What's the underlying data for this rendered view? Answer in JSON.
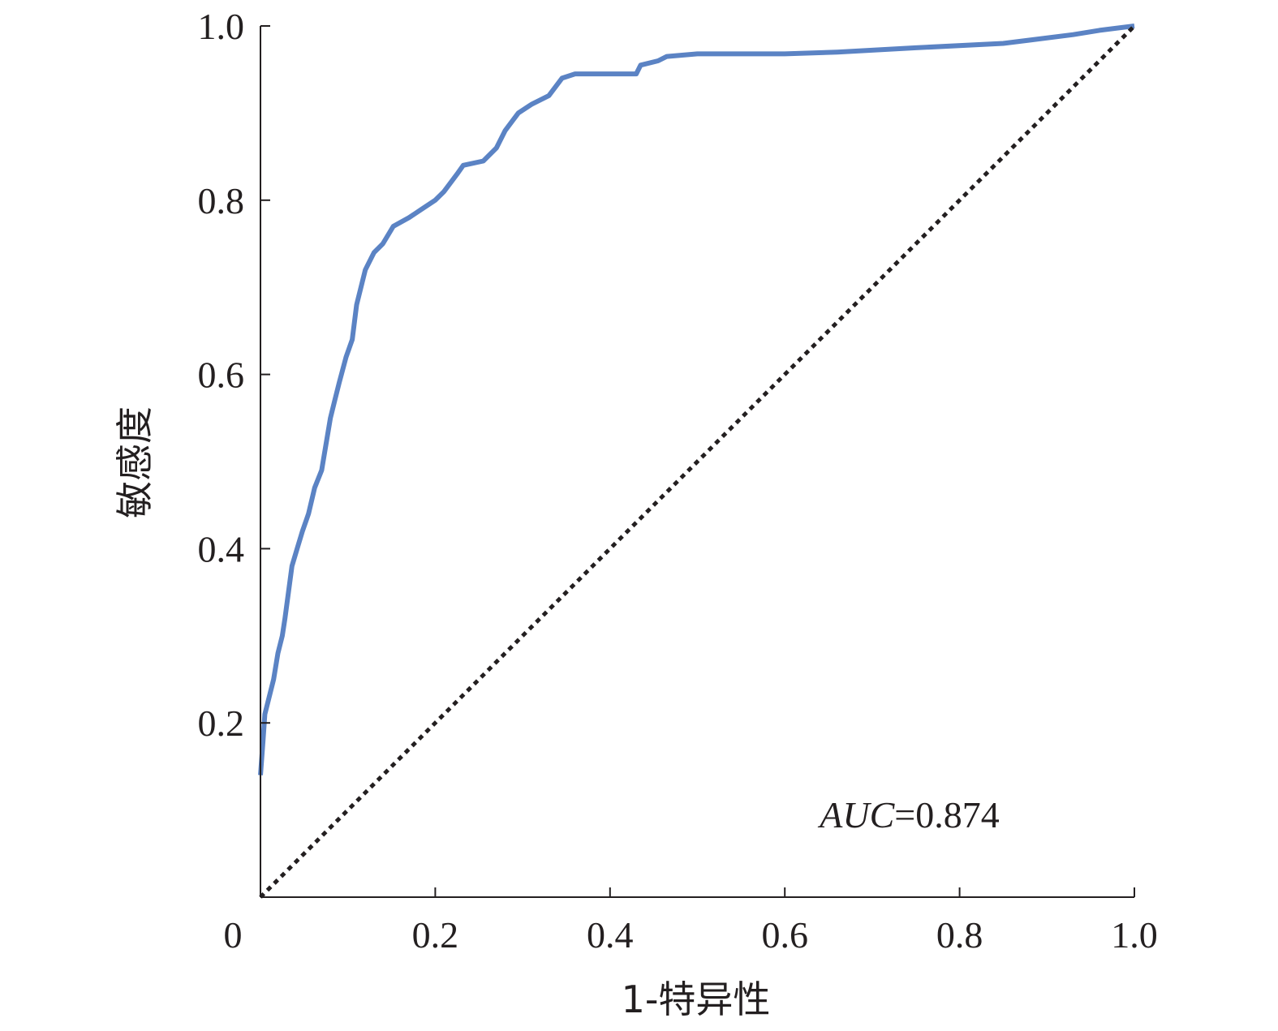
{
  "chart_data": {
    "type": "line",
    "xlabel": "1-特异性",
    "ylabel": "敏感度",
    "xlim": [
      0,
      1.0
    ],
    "ylim": [
      0,
      1.0
    ],
    "x_ticks": [
      {
        "value": 0,
        "label": "0"
      },
      {
        "value": 0.2,
        "label": "0.2"
      },
      {
        "value": 0.4,
        "label": "0.4"
      },
      {
        "value": 0.6,
        "label": "0.6"
      },
      {
        "value": 0.8,
        "label": "0.8"
      },
      {
        "value": 1.0,
        "label": "1.0"
      }
    ],
    "y_ticks": [
      {
        "value": 0.2,
        "label": "0.2"
      },
      {
        "value": 0.4,
        "label": "0.4"
      },
      {
        "value": 0.6,
        "label": "0.6"
      },
      {
        "value": 0.8,
        "label": "0.8"
      },
      {
        "value": 1.0,
        "label": "1.0"
      }
    ],
    "annotation": {
      "italic": "AUC",
      "rest": "=0.874",
      "x": 0.64,
      "y": 0.095
    },
    "grid": false,
    "series": [
      {
        "color": "#5b83c4",
        "style": "solid",
        "points": [
          [
            0.0,
            0.14
          ],
          [
            0.003,
            0.18
          ],
          [
            0.005,
            0.21
          ],
          [
            0.01,
            0.23
          ],
          [
            0.015,
            0.25
          ],
          [
            0.02,
            0.28
          ],
          [
            0.025,
            0.3
          ],
          [
            0.028,
            0.32
          ],
          [
            0.032,
            0.35
          ],
          [
            0.036,
            0.38
          ],
          [
            0.042,
            0.4
          ],
          [
            0.048,
            0.42
          ],
          [
            0.055,
            0.44
          ],
          [
            0.062,
            0.47
          ],
          [
            0.07,
            0.49
          ],
          [
            0.08,
            0.55
          ],
          [
            0.085,
            0.57
          ],
          [
            0.09,
            0.59
          ],
          [
            0.098,
            0.62
          ],
          [
            0.105,
            0.64
          ],
          [
            0.11,
            0.68
          ],
          [
            0.12,
            0.72
          ],
          [
            0.13,
            0.74
          ],
          [
            0.14,
            0.75
          ],
          [
            0.152,
            0.77
          ],
          [
            0.17,
            0.78
          ],
          [
            0.185,
            0.79
          ],
          [
            0.2,
            0.8
          ],
          [
            0.21,
            0.81
          ],
          [
            0.225,
            0.83
          ],
          [
            0.232,
            0.84
          ],
          [
            0.255,
            0.845
          ],
          [
            0.27,
            0.86
          ],
          [
            0.28,
            0.88
          ],
          [
            0.295,
            0.9
          ],
          [
            0.31,
            0.91
          ],
          [
            0.33,
            0.92
          ],
          [
            0.345,
            0.94
          ],
          [
            0.36,
            0.945
          ],
          [
            0.43,
            0.945
          ],
          [
            0.435,
            0.955
          ],
          [
            0.455,
            0.96
          ],
          [
            0.465,
            0.965
          ],
          [
            0.5,
            0.968
          ],
          [
            0.6,
            0.968
          ],
          [
            0.66,
            0.97
          ],
          [
            0.75,
            0.975
          ],
          [
            0.85,
            0.98
          ],
          [
            0.93,
            0.99
          ],
          [
            0.96,
            0.995
          ],
          [
            1.0,
            1.0
          ]
        ]
      },
      {
        "color": "#231f20",
        "style": "dotted",
        "points": [
          [
            0.0,
            0.0
          ],
          [
            1.0,
            1.0
          ]
        ]
      }
    ]
  }
}
